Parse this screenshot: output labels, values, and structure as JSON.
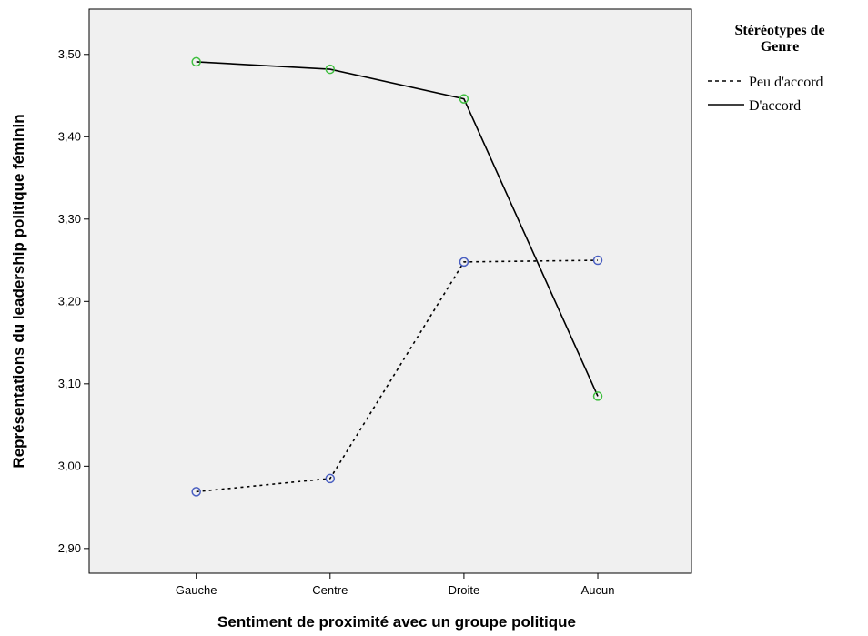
{
  "chart_data": {
    "type": "line",
    "xlabel": "Sentiment de proximité avec un groupe politique",
    "ylabel": "Représentations du leadership politique féminin",
    "categories": [
      "Gauche",
      "Centre",
      "Droite",
      "Aucun"
    ],
    "ylim": [
      2.87,
      3.555
    ],
    "yticks": [
      "2,90",
      "3,00",
      "3,10",
      "3,20",
      "3,30",
      "3,40",
      "3,50"
    ],
    "ytick_values": [
      2.9,
      3.0,
      3.1,
      3.2,
      3.3,
      3.4,
      3.5
    ],
    "grid": false,
    "legend": {
      "title_line1": "Stéréotypes de",
      "title_line2": "Genre",
      "placement": "right"
    },
    "series": [
      {
        "name": "Peu d'accord",
        "values": [
          2.969,
          2.985,
          3.248,
          3.25
        ],
        "line_style": "dotted",
        "marker_color": "#4a5fc1"
      },
      {
        "name": "D'accord",
        "values": [
          3.491,
          3.482,
          3.446,
          3.085
        ],
        "line_style": "solid",
        "marker_color": "#3fbf3f"
      }
    ],
    "plot_background": "#f0f0f0"
  }
}
